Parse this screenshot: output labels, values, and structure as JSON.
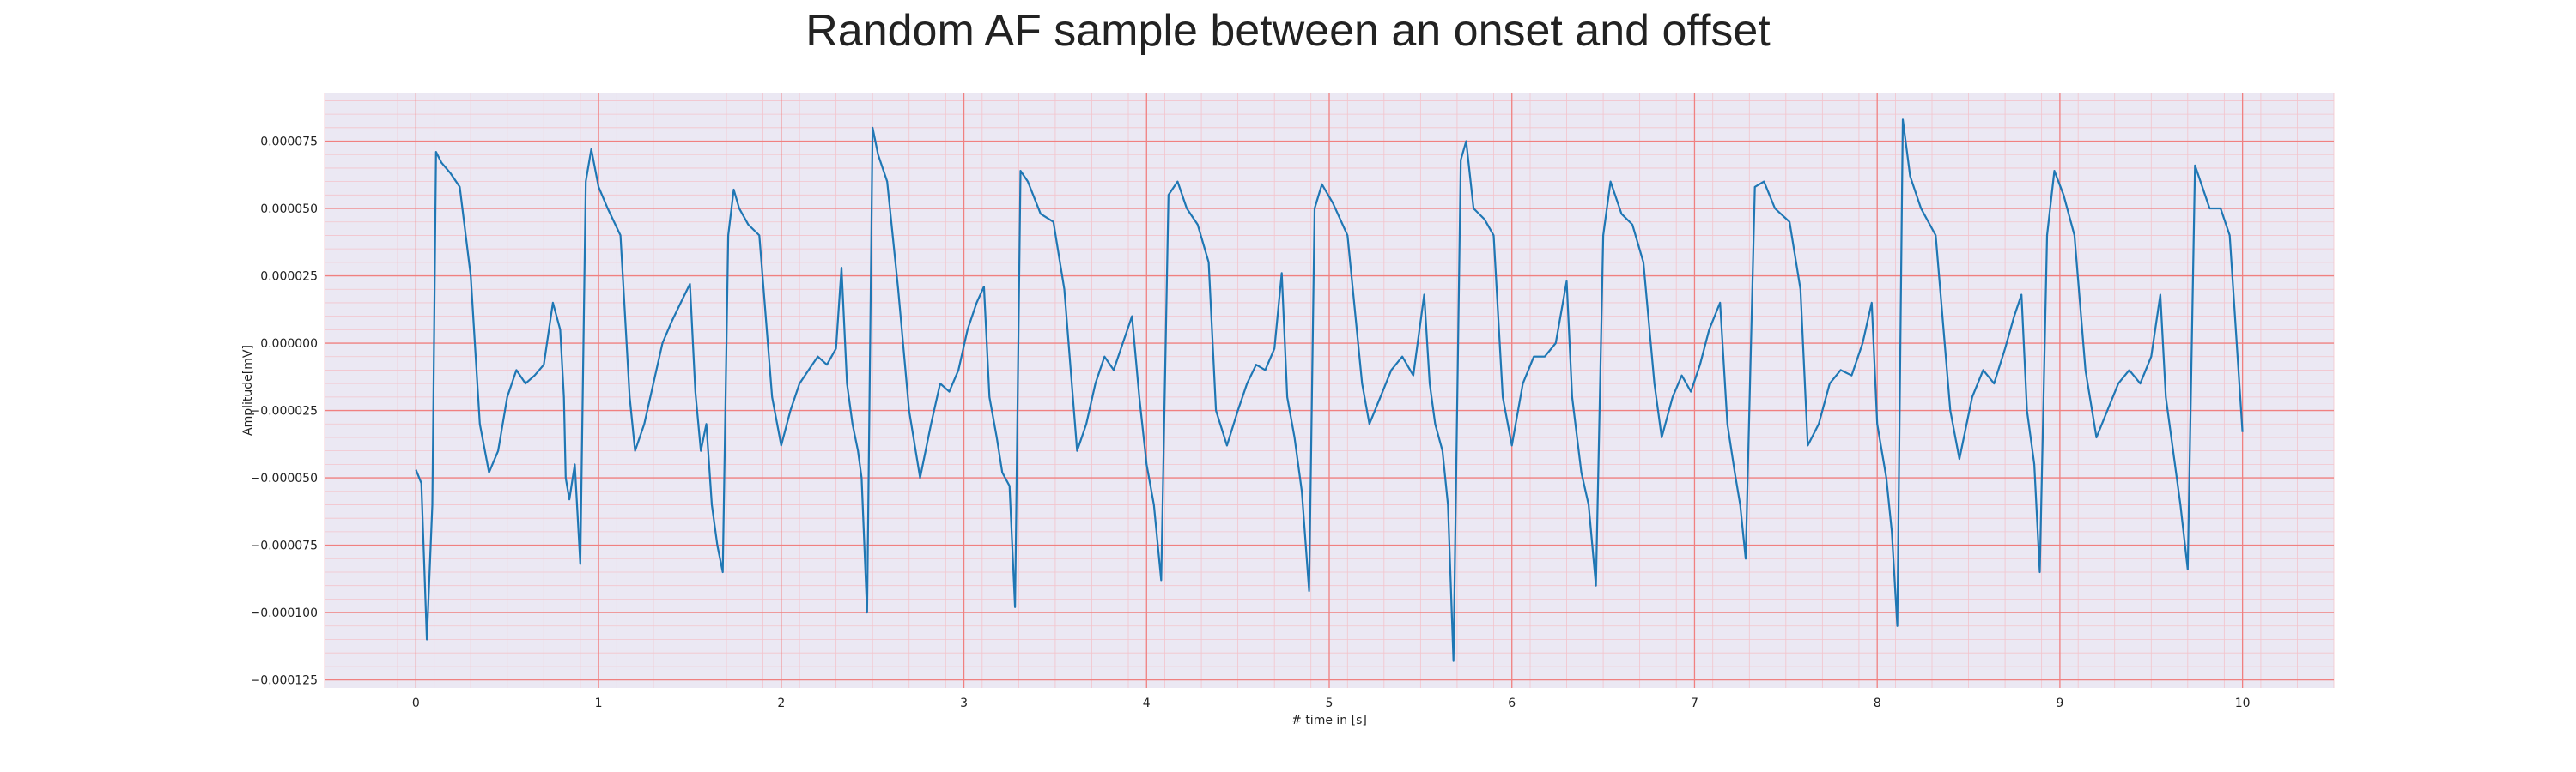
{
  "chart_data": {
    "type": "line",
    "title": "Random AF sample between an onset and offset",
    "xlabel": "# time in [s]",
    "ylabel": "Amplitude[mV]",
    "xlim": [
      -0.5,
      10.5
    ],
    "ylim": [
      -0.000128,
      9.3e-05
    ],
    "x_ticks": [
      0,
      1,
      2,
      3,
      4,
      5,
      6,
      7,
      8,
      9,
      10
    ],
    "y_ticks": [
      7.5e-05,
      5e-05,
      2.5e-05,
      0.0,
      -2.5e-05,
      -5e-05,
      -7.5e-05,
      -0.0001,
      -0.000125
    ],
    "y_tick_labels": [
      "0.000075",
      "0.000050",
      "0.000025",
      "0.000000",
      "−0.000025",
      "−0.000050",
      "−0.000075",
      "−0.000100",
      "−0.000125"
    ],
    "grid": true,
    "minor_grid": true,
    "colors": {
      "line": "#1f77b4",
      "plot_background": "#ebe8f3",
      "major_grid": "#f08080",
      "minor_grid": "#f3c4cc"
    },
    "series": [
      {
        "points": [
          [
            0.0,
            -4.7e-05
          ],
          [
            0.03,
            -5.2e-05
          ],
          [
            0.06,
            -0.00011
          ],
          [
            0.09,
            -6e-05
          ],
          [
            0.11,
            7.1e-05
          ],
          [
            0.14,
            6.7e-05
          ],
          [
            0.19,
            6.3e-05
          ],
          [
            0.24,
            5.8e-05
          ],
          [
            0.3,
            2.5e-05
          ],
          [
            0.35,
            -3e-05
          ],
          [
            0.4,
            -4.8e-05
          ],
          [
            0.45,
            -4e-05
          ],
          [
            0.5,
            -2e-05
          ],
          [
            0.55,
            -1e-05
          ],
          [
            0.6,
            -1.5e-05
          ],
          [
            0.65,
            -1.2e-05
          ],
          [
            0.7,
            -8e-06
          ],
          [
            0.75,
            1.5e-05
          ],
          [
            0.79,
            5e-06
          ],
          [
            0.81,
            -2e-05
          ],
          [
            0.82,
            -5e-05
          ],
          [
            0.84,
            -5.8e-05
          ],
          [
            0.87,
            -4.5e-05
          ],
          [
            0.9,
            -8.2e-05
          ],
          [
            0.93,
            6e-05
          ],
          [
            0.96,
            7.2e-05
          ],
          [
            1.0,
            5.8e-05
          ],
          [
            1.05,
            5e-05
          ],
          [
            1.12,
            4e-05
          ],
          [
            1.17,
            -2e-05
          ],
          [
            1.2,
            -4e-05
          ],
          [
            1.25,
            -3e-05
          ],
          [
            1.3,
            -1.5e-05
          ],
          [
            1.35,
            0.0
          ],
          [
            1.4,
            8e-06
          ],
          [
            1.45,
            1.5e-05
          ],
          [
            1.5,
            2.2e-05
          ],
          [
            1.53,
            -1.8e-05
          ],
          [
            1.56,
            -4e-05
          ],
          [
            1.59,
            -3e-05
          ],
          [
            1.62,
            -6e-05
          ],
          [
            1.65,
            -7.5e-05
          ],
          [
            1.68,
            -8.5e-05
          ],
          [
            1.71,
            4e-05
          ],
          [
            1.74,
            5.7e-05
          ],
          [
            1.77,
            5e-05
          ],
          [
            1.82,
            4.4e-05
          ],
          [
            1.88,
            4e-05
          ],
          [
            1.95,
            -2e-05
          ],
          [
            2.0,
            -3.8e-05
          ],
          [
            2.05,
            -2.5e-05
          ],
          [
            2.1,
            -1.5e-05
          ],
          [
            2.15,
            -1e-05
          ],
          [
            2.2,
            -5e-06
          ],
          [
            2.25,
            -8e-06
          ],
          [
            2.3,
            -2e-06
          ],
          [
            2.33,
            2.8e-05
          ],
          [
            2.36,
            -1.5e-05
          ],
          [
            2.39,
            -3e-05
          ],
          [
            2.42,
            -4e-05
          ],
          [
            2.44,
            -5e-05
          ],
          [
            2.47,
            -0.0001
          ],
          [
            2.5,
            8e-05
          ],
          [
            2.53,
            7e-05
          ],
          [
            2.58,
            6e-05
          ],
          [
            2.64,
            2e-05
          ],
          [
            2.7,
            -2.5e-05
          ],
          [
            2.76,
            -5e-05
          ],
          [
            2.82,
            -3e-05
          ],
          [
            2.87,
            -1.5e-05
          ],
          [
            2.92,
            -1.8e-05
          ],
          [
            2.97,
            -1e-05
          ],
          [
            3.02,
            5e-06
          ],
          [
            3.07,
            1.5e-05
          ],
          [
            3.11,
            2.1e-05
          ],
          [
            3.14,
            -2e-05
          ],
          [
            3.18,
            -3.5e-05
          ],
          [
            3.21,
            -4.8e-05
          ],
          [
            3.25,
            -5.3e-05
          ],
          [
            3.28,
            -9.8e-05
          ],
          [
            3.31,
            6.4e-05
          ],
          [
            3.35,
            6e-05
          ],
          [
            3.42,
            4.8e-05
          ],
          [
            3.49,
            4.5e-05
          ],
          [
            3.55,
            2e-05
          ],
          [
            3.62,
            -4e-05
          ],
          [
            3.67,
            -3e-05
          ],
          [
            3.72,
            -1.5e-05
          ],
          [
            3.77,
            -5e-06
          ],
          [
            3.82,
            -1e-05
          ],
          [
            3.87,
            0.0
          ],
          [
            3.92,
            1e-05
          ],
          [
            3.96,
            -2e-05
          ],
          [
            4.0,
            -4.5e-05
          ],
          [
            4.04,
            -6e-05
          ],
          [
            4.08,
            -8.8e-05
          ],
          [
            4.12,
            5.5e-05
          ],
          [
            4.17,
            6e-05
          ],
          [
            4.22,
            5e-05
          ],
          [
            4.28,
            4.4e-05
          ],
          [
            4.34,
            3e-05
          ],
          [
            4.38,
            -2.5e-05
          ],
          [
            4.44,
            -3.8e-05
          ],
          [
            4.5,
            -2.5e-05
          ],
          [
            4.55,
            -1.5e-05
          ],
          [
            4.6,
            -8e-06
          ],
          [
            4.65,
            -1e-05
          ],
          [
            4.7,
            -2e-06
          ],
          [
            4.74,
            2.6e-05
          ],
          [
            4.77,
            -2e-05
          ],
          [
            4.81,
            -3.5e-05
          ],
          [
            4.85,
            -5.5e-05
          ],
          [
            4.89,
            -9.2e-05
          ],
          [
            4.92,
            5e-05
          ],
          [
            4.96,
            5.9e-05
          ],
          [
            5.02,
            5.2e-05
          ],
          [
            5.1,
            4e-05
          ],
          [
            5.18,
            -1.5e-05
          ],
          [
            5.22,
            -3e-05
          ],
          [
            5.28,
            -2e-05
          ],
          [
            5.34,
            -1e-05
          ],
          [
            5.4,
            -5e-06
          ],
          [
            5.46,
            -1.2e-05
          ],
          [
            5.52,
            1.8e-05
          ],
          [
            5.55,
            -1.5e-05
          ],
          [
            5.58,
            -3e-05
          ],
          [
            5.62,
            -4e-05
          ],
          [
            5.65,
            -6e-05
          ],
          [
            5.68,
            -0.000118
          ],
          [
            5.72,
            6.8e-05
          ],
          [
            5.75,
            7.5e-05
          ],
          [
            5.79,
            5e-05
          ],
          [
            5.85,
            4.6e-05
          ],
          [
            5.9,
            4e-05
          ],
          [
            5.95,
            -2e-05
          ],
          [
            6.0,
            -3.8e-05
          ],
          [
            6.06,
            -1.5e-05
          ],
          [
            6.12,
            -5e-06
          ],
          [
            6.18,
            -5e-06
          ],
          [
            6.24,
            0.0
          ],
          [
            6.3,
            2.3e-05
          ],
          [
            6.33,
            -2e-05
          ],
          [
            6.38,
            -4.8e-05
          ],
          [
            6.42,
            -6e-05
          ],
          [
            6.46,
            -9e-05
          ],
          [
            6.5,
            4e-05
          ],
          [
            6.54,
            6e-05
          ],
          [
            6.6,
            4.8e-05
          ],
          [
            6.66,
            4.4e-05
          ],
          [
            6.72,
            3e-05
          ],
          [
            6.78,
            -1.5e-05
          ],
          [
            6.82,
            -3.5e-05
          ],
          [
            6.88,
            -2e-05
          ],
          [
            6.93,
            -1.2e-05
          ],
          [
            6.98,
            -1.8e-05
          ],
          [
            7.03,
            -8e-06
          ],
          [
            7.08,
            5e-06
          ],
          [
            7.14,
            1.5e-05
          ],
          [
            7.18,
            -3e-05
          ],
          [
            7.22,
            -4.8e-05
          ],
          [
            7.25,
            -6e-05
          ],
          [
            7.28,
            -8e-05
          ],
          [
            7.33,
            5.8e-05
          ],
          [
            7.38,
            6e-05
          ],
          [
            7.44,
            5e-05
          ],
          [
            7.52,
            4.5e-05
          ],
          [
            7.58,
            2e-05
          ],
          [
            7.62,
            -3.8e-05
          ],
          [
            7.68,
            -3e-05
          ],
          [
            7.74,
            -1.5e-05
          ],
          [
            7.8,
            -1e-05
          ],
          [
            7.86,
            -1.2e-05
          ],
          [
            7.92,
            0.0
          ],
          [
            7.97,
            1.5e-05
          ],
          [
            8.0,
            -3e-05
          ],
          [
            8.05,
            -5e-05
          ],
          [
            8.08,
            -7e-05
          ],
          [
            8.11,
            -0.000105
          ],
          [
            8.14,
            8.3e-05
          ],
          [
            8.18,
            6.2e-05
          ],
          [
            8.24,
            5e-05
          ],
          [
            8.32,
            4e-05
          ],
          [
            8.4,
            -2.5e-05
          ],
          [
            8.45,
            -4.3e-05
          ],
          [
            8.52,
            -2e-05
          ],
          [
            8.58,
            -1e-05
          ],
          [
            8.64,
            -1.5e-05
          ],
          [
            8.7,
            -2e-06
          ],
          [
            8.75,
            1e-05
          ],
          [
            8.79,
            1.8e-05
          ],
          [
            8.82,
            -2.5e-05
          ],
          [
            8.86,
            -4.5e-05
          ],
          [
            8.89,
            -8.5e-05
          ],
          [
            8.93,
            4e-05
          ],
          [
            8.97,
            6.4e-05
          ],
          [
            9.02,
            5.5e-05
          ],
          [
            9.08,
            4e-05
          ],
          [
            9.14,
            -1e-05
          ],
          [
            9.2,
            -3.5e-05
          ],
          [
            9.26,
            -2.5e-05
          ],
          [
            9.32,
            -1.5e-05
          ],
          [
            9.38,
            -1e-05
          ],
          [
            9.44,
            -1.5e-05
          ],
          [
            9.5,
            -5e-06
          ],
          [
            9.55,
            1.8e-05
          ],
          [
            9.58,
            -2e-05
          ],
          [
            9.62,
            -4e-05
          ],
          [
            9.66,
            -6e-05
          ],
          [
            9.7,
            -8.4e-05
          ],
          [
            9.74,
            6.6e-05
          ],
          [
            9.78,
            5.8e-05
          ],
          [
            9.82,
            5e-05
          ],
          [
            9.88,
            5e-05
          ],
          [
            9.93,
            4e-05
          ],
          [
            10.0,
            -3.3e-05
          ]
        ]
      }
    ]
  }
}
